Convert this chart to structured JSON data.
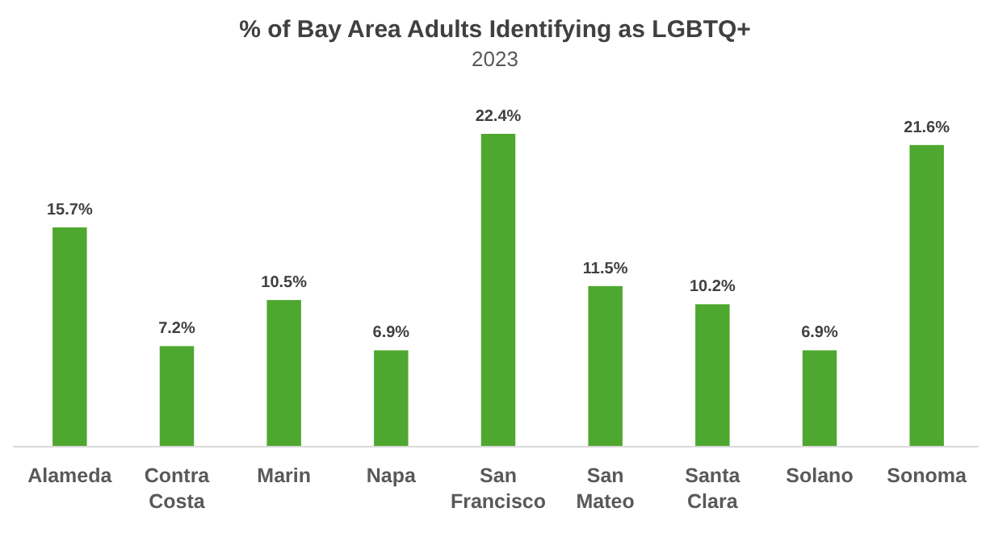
{
  "chart_data": {
    "type": "bar",
    "title": "% of Bay Area Adults Identifying as LGBTQ+",
    "subtitle": "2023",
    "categories": [
      "Alameda",
      "Contra Costa",
      "Marin",
      "Napa",
      "San Francisco",
      "San Mateo",
      "Santa Clara",
      "Solano",
      "Sonoma"
    ],
    "values": [
      15.7,
      7.2,
      10.5,
      6.9,
      22.4,
      11.5,
      10.2,
      6.9,
      21.6
    ],
    "value_labels": [
      "15.7%",
      "7.2%",
      "10.5%",
      "6.9%",
      "22.4%",
      "11.5%",
      "10.2%",
      "6.9%",
      "21.6%"
    ],
    "color": "#4ea72e"
  }
}
